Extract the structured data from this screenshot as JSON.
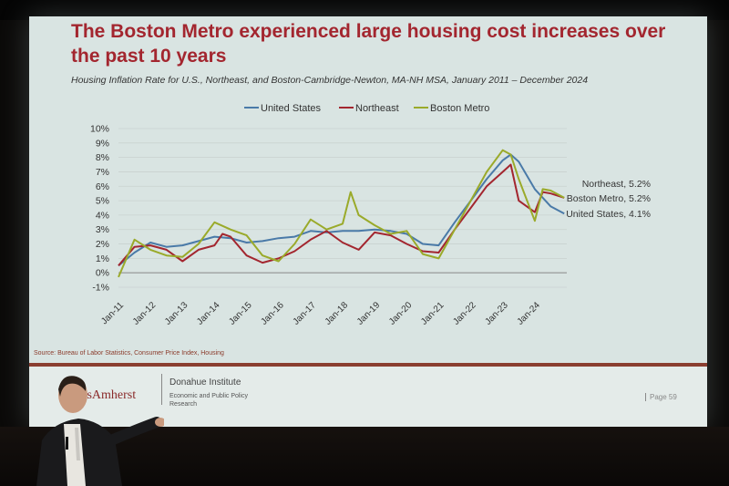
{
  "slide": {
    "title": "The Boston Metro experienced large housing cost increases over the past 10 years",
    "subtitle": "Housing Inflation Rate for U.S., Northeast, and Boston-Cambridge-Newton, MA-NH MSA, January 2011 – December 2024",
    "source": "Source: Bureau of Labor Statistics, Consumer Price Index, Housing",
    "logo_text": "ssAmherst",
    "institute_name": "Donahue Institute",
    "institute_sub": "Economic and Public Policy Research",
    "page_label": "Page 59"
  },
  "colors": {
    "title": "#a3262f",
    "united_states": "#4a7aa8",
    "northeast": "#a3262f",
    "boston_metro": "#9aaa2a",
    "slide_bg": "#d9e4e2"
  },
  "chart_data": {
    "type": "line",
    "ylabel": "",
    "xlabel": "",
    "ylim": [
      -1,
      10
    ],
    "y_ticks": [
      "-1%",
      "0%",
      "1%",
      "2%",
      "3%",
      "4%",
      "5%",
      "6%",
      "7%",
      "8%",
      "9%",
      "10%"
    ],
    "x_ticks": [
      "Jan-11",
      "Jan-12",
      "Jan-13",
      "Jan-14",
      "Jan-15",
      "Jan-16",
      "Jan-17",
      "Jan-18",
      "Jan-19",
      "Jan-20",
      "Jan-21",
      "Jan-22",
      "Jan-23",
      "Jan-24"
    ],
    "grid": true,
    "legend_position": "top",
    "series": [
      {
        "name": "United States",
        "end_label": "United States, 4.1%",
        "x": [
          2011.0,
          2011.5,
          2012.0,
          2012.5,
          2013.0,
          2013.5,
          2014.0,
          2014.5,
          2015.0,
          2015.5,
          2016.0,
          2016.5,
          2017.0,
          2017.5,
          2018.0,
          2018.5,
          2019.0,
          2019.5,
          2020.0,
          2020.5,
          2021.0,
          2021.5,
          2022.0,
          2022.5,
          2023.0,
          2023.25,
          2023.5,
          2024.0,
          2024.5,
          2024.92
        ],
        "values": [
          0.5,
          1.4,
          2.1,
          1.8,
          1.9,
          2.2,
          2.5,
          2.4,
          2.1,
          2.2,
          2.4,
          2.5,
          2.9,
          2.8,
          2.9,
          2.9,
          3.0,
          2.9,
          2.7,
          2.0,
          1.9,
          3.5,
          5.0,
          6.5,
          7.8,
          8.2,
          7.7,
          5.8,
          4.6,
          4.1
        ]
      },
      {
        "name": "Northeast",
        "end_label": "Northeast, 5.2%",
        "x": [
          2011.0,
          2011.5,
          2012.0,
          2012.5,
          2013.0,
          2013.5,
          2014.0,
          2014.25,
          2014.5,
          2015.0,
          2015.5,
          2016.0,
          2016.5,
          2017.0,
          2017.5,
          2018.0,
          2018.5,
          2019.0,
          2019.5,
          2020.0,
          2020.5,
          2021.0,
          2021.5,
          2022.0,
          2022.5,
          2023.0,
          2023.25,
          2023.5,
          2024.0,
          2024.25,
          2024.5,
          2024.92
        ],
        "values": [
          0.5,
          1.8,
          1.9,
          1.6,
          0.8,
          1.6,
          1.9,
          2.7,
          2.5,
          1.2,
          0.7,
          1.0,
          1.5,
          2.3,
          2.9,
          2.1,
          1.6,
          2.8,
          2.6,
          2.0,
          1.5,
          1.4,
          3.0,
          4.5,
          6.0,
          7.0,
          7.5,
          5.0,
          4.2,
          5.6,
          5.5,
          5.2
        ]
      },
      {
        "name": "Boston Metro",
        "end_label": "Boston Metro, 5.2%",
        "x": [
          2011.0,
          2011.5,
          2012.0,
          2012.5,
          2013.0,
          2013.5,
          2014.0,
          2014.5,
          2015.0,
          2015.5,
          2016.0,
          2016.5,
          2017.0,
          2017.5,
          2018.0,
          2018.25,
          2018.5,
          2019.0,
          2019.5,
          2020.0,
          2020.5,
          2021.0,
          2021.5,
          2022.0,
          2022.5,
          2023.0,
          2023.25,
          2023.5,
          2024.0,
          2024.25,
          2024.5,
          2024.92
        ],
        "values": [
          -0.3,
          2.3,
          1.6,
          1.2,
          1.1,
          2.0,
          3.5,
          3.0,
          2.6,
          1.2,
          0.8,
          2.0,
          3.7,
          3.0,
          3.4,
          5.6,
          4.0,
          3.3,
          2.7,
          2.9,
          1.3,
          1.0,
          3.0,
          5.0,
          7.0,
          8.5,
          8.2,
          6.5,
          3.6,
          5.8,
          5.7,
          5.2
        ]
      }
    ]
  }
}
